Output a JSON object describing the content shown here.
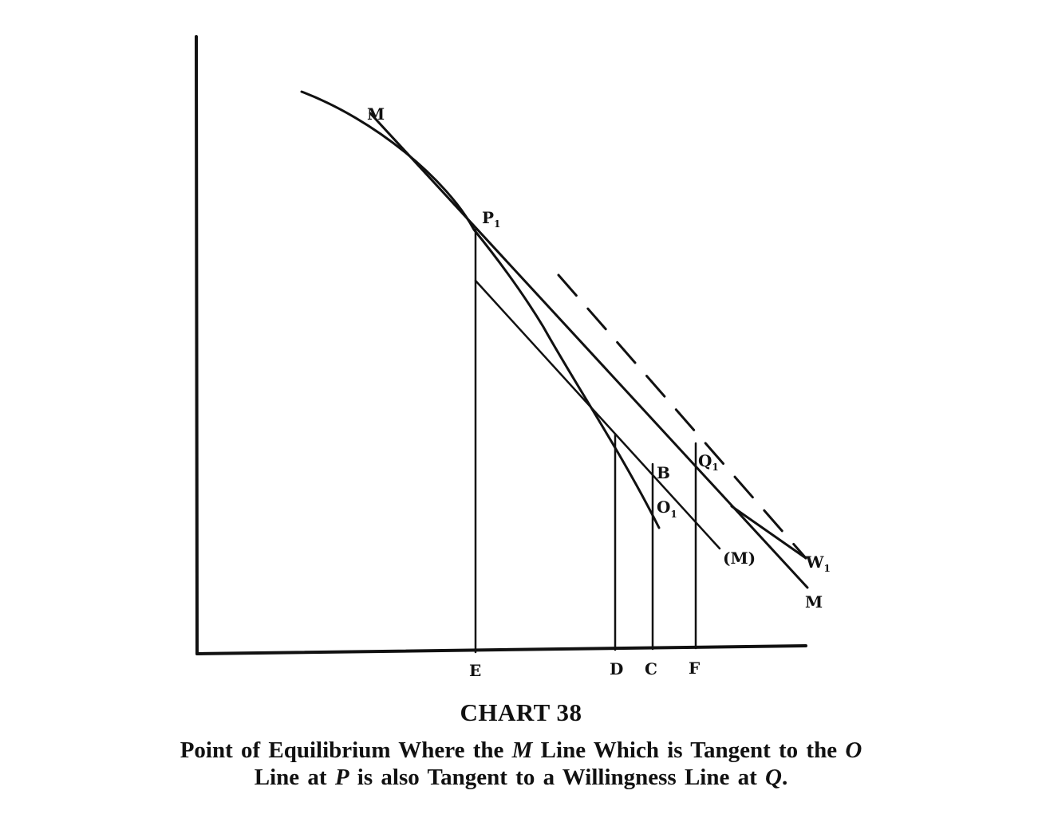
{
  "figure": {
    "number": "CHART 38",
    "caption_parts": [
      "Point of Equilibrium Where the ",
      "M",
      " Line Which is Tangent to the ",
      "O",
      "Line at ",
      "P",
      " is also Tangent to a Willingness Line at ",
      "Q",
      "."
    ]
  },
  "labels": {
    "M_top": "M",
    "P1": "P",
    "P1_sub": "1",
    "B": "B",
    "O1": "O",
    "O1_sub": "1",
    "Q1": "Q",
    "Q1_sub": "1",
    "M_paren": "(M)",
    "W1": "W",
    "W1_sub": "1",
    "M_bottom": "M",
    "E": "E",
    "D": "D",
    "C": "C",
    "F": "F"
  }
}
